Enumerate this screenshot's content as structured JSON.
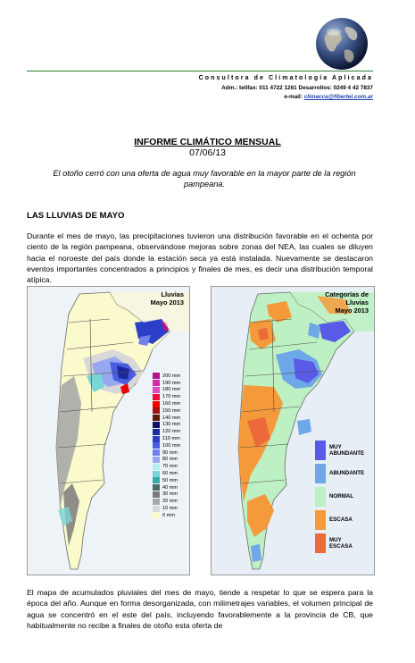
{
  "header": {
    "company_name": "Consultora de Climatología Aplicada",
    "contact_line1": "Adm.: telifax: 011 4722 1261 Desarrollos: 0249 4 42 7837",
    "email_label": "e-mail:",
    "email": "climacca@fibertel.com.ar"
  },
  "report": {
    "title": "INFORME CLIMÁTICO MENSUAL",
    "date": "07/06/13",
    "summary": "El otoño cerró con una oferta de agua muy favorable en la mayor parte de la región pampeana."
  },
  "section": {
    "title": "LAS LLUVIAS DE MAYO",
    "paragraph1": "Durante el mes de mayo, las precipitaciones tuvieron una distribución favorable en el ochenta por ciento de la región pampeana, observándose mejoras sobre zonas del NEA, las cuales se diluyen hacia el noroeste del país donde la estación seca ya está instalada. Nuevamente se destacaron eventos importantes concentrados a principios y finales de mes, es decir una distribución temporal atípica.",
    "paragraph2": "El mapa de acumulados pluviales del mes de mayo, tiende a respetar lo que se espera para la época del año. Aunque en forma desorganizada, con milimetrajes variables, el volumen principal de agua se concentró en el este del país, incluyendo favorablemente a la provincia de CB, que habitualmente no recibe a finales de otoño esta oferta de"
  },
  "map_rain": {
    "title_line1": "Lluvias",
    "title_line2": "Mayo 2013",
    "legend": [
      {
        "label": "200 mm",
        "color": "#b0148c"
      },
      {
        "label": "190 mm",
        "color": "#d62aa8"
      },
      {
        "label": "180 mm",
        "color": "#e04ac0"
      },
      {
        "label": "170 mm",
        "color": "#e8103a"
      },
      {
        "label": "160 mm",
        "color": "#f20000"
      },
      {
        "label": "150 mm",
        "color": "#a81010"
      },
      {
        "label": "140 mm",
        "color": "#5a1a08"
      },
      {
        "label": "130 mm",
        "color": "#101060"
      },
      {
        "label": "120 mm",
        "color": "#1a2a9a"
      },
      {
        "label": "110 mm",
        "color": "#2a3ec8"
      },
      {
        "label": "100 mm",
        "color": "#4a5ce0"
      },
      {
        "label": "90 mm",
        "color": "#6f80ea"
      },
      {
        "label": "80 mm",
        "color": "#98a8f0"
      },
      {
        "label": "70 mm",
        "color": "#b6f0f0"
      },
      {
        "label": "60 mm",
        "color": "#7ad6d6"
      },
      {
        "label": "50 mm",
        "color": "#3aa8a8"
      },
      {
        "label": "40 mm",
        "color": "#4a6a6a"
      },
      {
        "label": "30 mm",
        "color": "#7a7a7a"
      },
      {
        "label": "20 mm",
        "color": "#a8a8a8"
      },
      {
        "label": "10 mm",
        "color": "#d8d8d8"
      },
      {
        "label": "0 mm",
        "color": "#fafacc"
      }
    ]
  },
  "map_categories": {
    "title_line1": "Categorías de",
    "title_line2": "Lluvias",
    "title_line3": "Mayo 2013",
    "legend": [
      {
        "label_line1": "MUY",
        "label_line2": "ABUNDANTE",
        "color": "#5a5ae8"
      },
      {
        "label_line1": "ABUNDANTE",
        "label_line2": "",
        "color": "#6fa8e8"
      },
      {
        "label_line1": "NORMAL",
        "label_line2": "",
        "color": "#bdf0c2"
      },
      {
        "label_line1": "ESCASA",
        "label_line2": "",
        "color": "#f59a3a"
      },
      {
        "label_line1": "MUY",
        "label_line2": "ESCASA",
        "color": "#ec6a3a"
      }
    ]
  }
}
